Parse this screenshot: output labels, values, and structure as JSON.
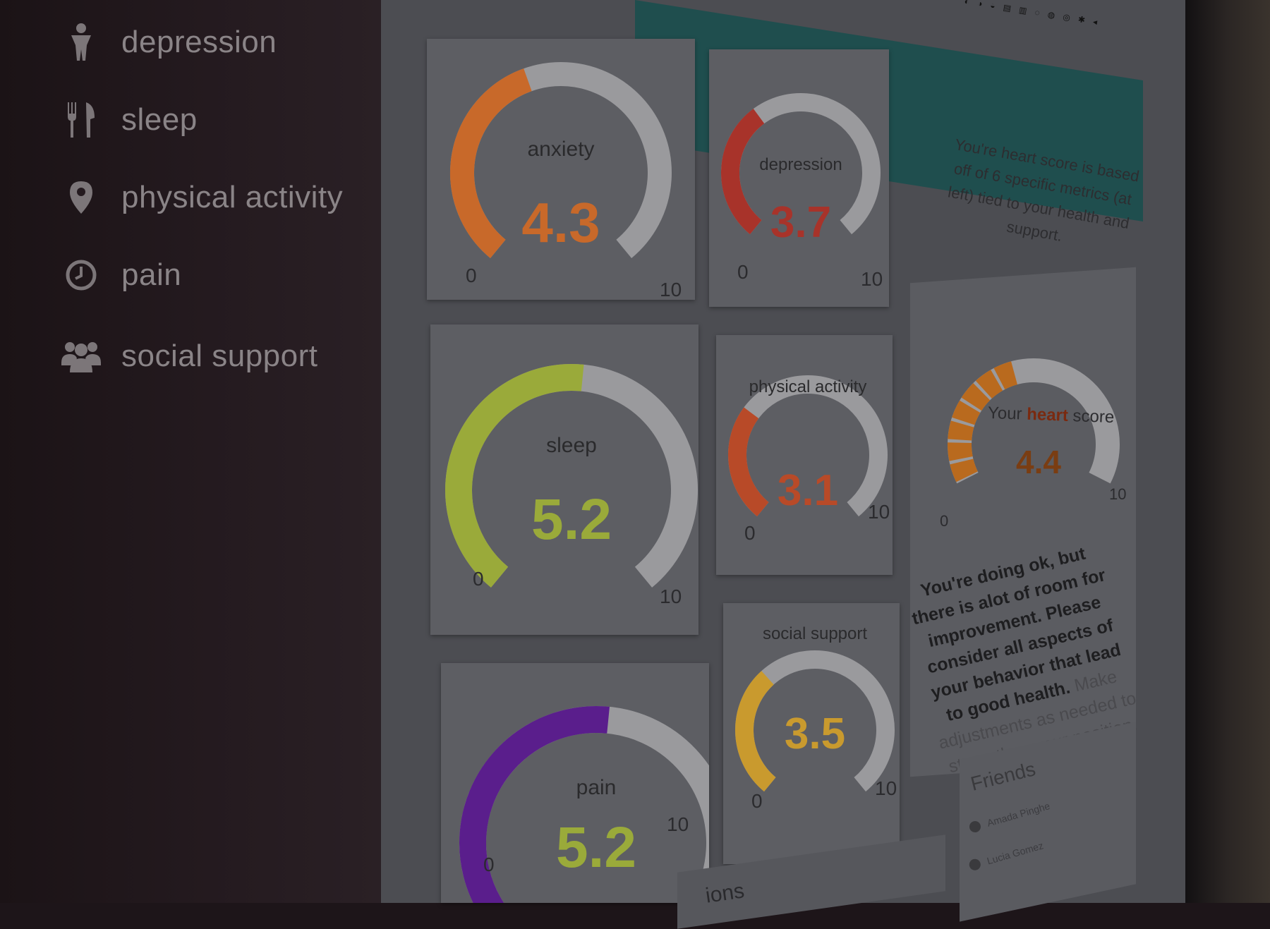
{
  "sidebar": {
    "items": [
      {
        "label": "depression",
        "icon": "person-icon"
      },
      {
        "label": "sleep",
        "icon": "fork-knife-icon"
      },
      {
        "label": "physical activity",
        "icon": "map-pin-icon"
      },
      {
        "label": "pain",
        "icon": "clock-icon"
      },
      {
        "label": "social support",
        "icon": "group-icon"
      }
    ]
  },
  "gauges": [
    {
      "name": "anxiety",
      "value": "4.3",
      "fraction": 0.43,
      "min": "0",
      "max": "10",
      "color": "#c8692a"
    },
    {
      "name": "depression",
      "value": "3.7",
      "fraction": 0.37,
      "min": "0",
      "max": "10",
      "color": "#a8332a"
    },
    {
      "name": "sleep",
      "value": "5.2",
      "fraction": 0.52,
      "min": "0",
      "max": "10",
      "color": "#9aaa3a"
    },
    {
      "name": "physical activity",
      "value": "3.1",
      "fraction": 0.31,
      "min": "0",
      "max": "10",
      "color": "#b84a28"
    },
    {
      "name": "pain",
      "value": "5.2",
      "fraction": 0.52,
      "min": "0",
      "max": "10",
      "color": "#5a1e8c"
    },
    {
      "name": "social support",
      "value": "3.5",
      "fraction": 0.35,
      "min": "0",
      "max": "10",
      "color": "#c99a2e"
    }
  ],
  "info": {
    "text": "You're heart score is based off of 6 specific metrics (at left) tied to your health and support."
  },
  "heart": {
    "label_prefix": "Your",
    "label_highlight": "heart",
    "label_suffix": "score",
    "value": "4.4",
    "fraction": 0.44,
    "min": "0",
    "max": "10",
    "color": "#b96a1e",
    "message_bold": "You're doing ok, but there is alot of room for improvement. Please consider all aspects of your behavior that lead to good health.",
    "message_light": "Make adjustments as needed to strengthen your position."
  },
  "friends": {
    "title": "Friends",
    "items": [
      {
        "name": "Amada Pinghe"
      },
      {
        "name": "Lucia Gomez"
      }
    ]
  },
  "bottom": {
    "label": "ions"
  },
  "colors": {
    "track": "#9a9a9d"
  }
}
